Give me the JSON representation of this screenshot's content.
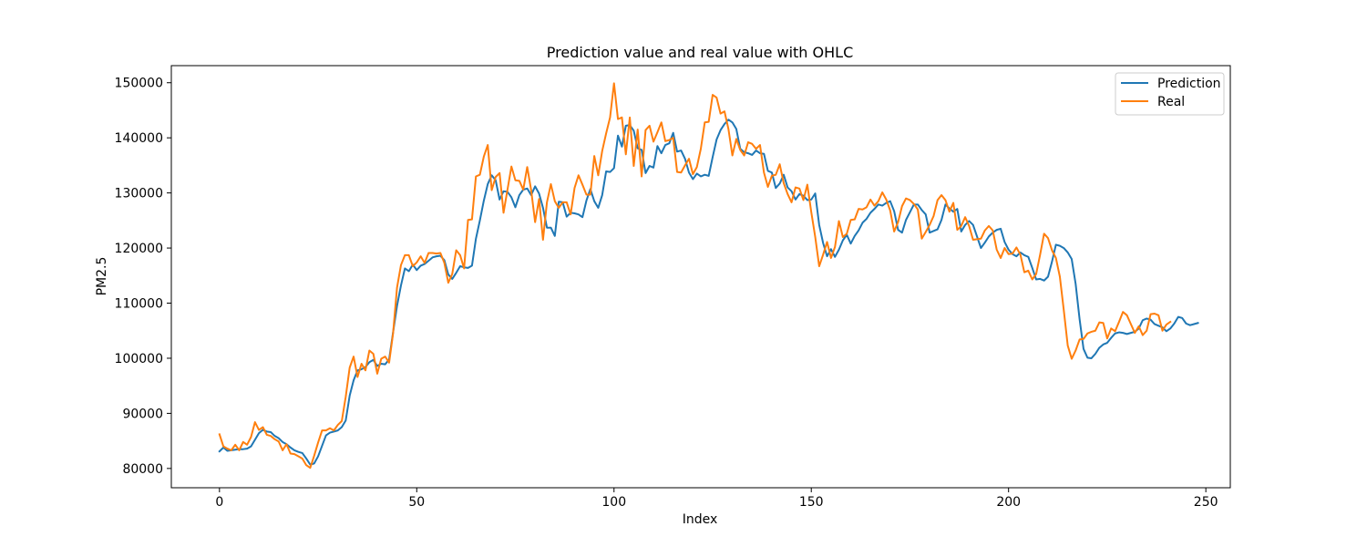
{
  "chart_data": {
    "type": "line",
    "title": "Prediction value and real value with OHLC",
    "xlabel": "Index",
    "ylabel": "PM2.5",
    "xlim": [
      -12.2,
      256.2
    ],
    "ylim": [
      76500,
      153100
    ],
    "xticks": [
      0,
      50,
      100,
      150,
      200,
      250
    ],
    "yticks": [
      80000,
      90000,
      100000,
      110000,
      120000,
      130000,
      140000,
      150000
    ],
    "xtick_labels": [
      "0",
      "50",
      "100",
      "150",
      "200",
      "250"
    ],
    "ytick_labels": [
      "80000",
      "90000",
      "100000",
      "110000",
      "120000",
      "130000",
      "140000",
      "150000"
    ],
    "grid": false,
    "legend_position": "top-right",
    "x_start": 0,
    "x_step": 1,
    "series": [
      {
        "name": "Prediction",
        "color": "#1f77b4",
        "values": [
          83100,
          83800,
          83200,
          83300,
          83400,
          83500,
          83500,
          83600,
          84000,
          85200,
          86400,
          87000,
          86700,
          86600,
          85900,
          85500,
          84800,
          84400,
          83800,
          83300,
          83000,
          82800,
          81800,
          80700,
          80900,
          82200,
          84100,
          86000,
          86500,
          86700,
          86900,
          87500,
          88700,
          93200,
          96000,
          97800,
          98000,
          98400,
          99300,
          99700,
          98600,
          99000,
          98900,
          99800,
          104700,
          109500,
          113200,
          116300,
          115800,
          117000,
          116000,
          116800,
          117100,
          117700,
          118300,
          118500,
          118600,
          117800,
          115200,
          114400,
          115500,
          116700,
          116500,
          116400,
          116800,
          121700,
          125000,
          128600,
          131600,
          133200,
          132300,
          128800,
          130300,
          130200,
          129200,
          127400,
          129600,
          130600,
          130800,
          129600,
          131200,
          129900,
          127300,
          123700,
          123700,
          122200,
          128400,
          128300,
          125700,
          126400,
          126300,
          126100,
          125600,
          128600,
          130700,
          128500,
          127300,
          129600,
          133900,
          133800,
          134500,
          140400,
          138400,
          142200,
          142300,
          141300,
          138100,
          137800,
          133600,
          134900,
          134600,
          138500,
          137200,
          138700,
          139000,
          140900,
          137500,
          137700,
          136200,
          133700,
          132500,
          133500,
          133000,
          133300,
          133100,
          136500,
          139700,
          141400,
          142500,
          143300,
          142800,
          141600,
          138000,
          137400,
          137200,
          136900,
          137700,
          137200,
          137100,
          134000,
          133700,
          130900,
          131700,
          133300,
          131000,
          130300,
          128800,
          129800,
          129500,
          128700,
          128800,
          129900,
          124200,
          120900,
          118500,
          119800,
          118400,
          119700,
          121400,
          122400,
          120800,
          122200,
          123200,
          124600,
          125300,
          126400,
          127100,
          127900,
          127700,
          128200,
          128500,
          126700,
          123300,
          122800,
          125100,
          126500,
          127900,
          127900,
          126900,
          126100,
          122800,
          123100,
          123400,
          125100,
          127900,
          127200,
          126600,
          127100,
          123000,
          124200,
          124900,
          124200,
          122100,
          120000,
          121000,
          122100,
          122800,
          123300,
          123500,
          121100,
          119700,
          118900,
          118500,
          119200,
          118700,
          118400,
          116400,
          114300,
          114400,
          114100,
          114800,
          117500,
          120600,
          120400,
          120000,
          119200,
          118000,
          113500,
          107100,
          101700,
          100100,
          100000,
          100800,
          101900,
          102500,
          102800,
          103700,
          104500,
          104700,
          104600,
          104400,
          104600,
          104800,
          105400,
          106900,
          107200,
          107000,
          106200,
          105900,
          105600,
          104900,
          105400,
          106300,
          107500,
          107300,
          106300,
          106000,
          106200,
          106400
        ]
      },
      {
        "name": "Real",
        "color": "#ff7f0e",
        "values": [
          86200,
          84000,
          83600,
          83300,
          84300,
          83300,
          84800,
          84300,
          85700,
          88400,
          87000,
          87500,
          86100,
          85900,
          85300,
          84900,
          83300,
          84400,
          82700,
          82600,
          82200,
          81800,
          80600,
          80100,
          82300,
          84700,
          86900,
          86900,
          87300,
          86900,
          87900,
          88600,
          93000,
          98300,
          100300,
          96600,
          99000,
          97800,
          101400,
          100800,
          97200,
          99900,
          100300,
          99200,
          104500,
          112800,
          116900,
          118700,
          118700,
          116700,
          117400,
          118500,
          117300,
          119100,
          119100,
          119000,
          119100,
          117300,
          113700,
          115300,
          119600,
          118700,
          116300,
          125100,
          125200,
          133000,
          133300,
          136600,
          138700,
          130500,
          132900,
          133600,
          126400,
          130600,
          134800,
          132300,
          132200,
          130600,
          134700,
          130500,
          124700,
          128900,
          121500,
          128300,
          131600,
          128500,
          127300,
          128300,
          128300,
          126100,
          130900,
          133200,
          131500,
          129700,
          129700,
          136700,
          133200,
          137600,
          140800,
          143700,
          149900,
          143400,
          143700,
          137000,
          143700,
          134900,
          141500,
          133000,
          141400,
          142200,
          139300,
          141000,
          142800,
          139400,
          139600,
          140000,
          133800,
          133700,
          135000,
          136200,
          133400,
          134700,
          138000,
          142800,
          142900,
          147800,
          147300,
          144400,
          144800,
          141600,
          136800,
          139800,
          137800,
          136800,
          139200,
          138900,
          138000,
          138700,
          133700,
          131100,
          133100,
          133300,
          135200,
          131800,
          129800,
          128300,
          131000,
          130800,
          128700,
          131500,
          126500,
          122000,
          116700,
          118800,
          121100,
          118200,
          120200,
          124900,
          122000,
          122600,
          125100,
          125200,
          127100,
          127000,
          127400,
          128800,
          127700,
          128500,
          130100,
          128800,
          126800,
          123000,
          124700,
          127600,
          129000,
          128700,
          128000,
          127000,
          121700,
          122900,
          124200,
          125800,
          128700,
          129600,
          128700,
          126600,
          128200,
          123300,
          124000,
          125600,
          124000,
          121500,
          121600,
          121700,
          123200,
          124000,
          123200,
          119700,
          118200,
          120000,
          118900,
          119000,
          120100,
          118800,
          115600,
          115900,
          114300,
          115300,
          118800,
          122600,
          121800,
          119600,
          118200,
          114800,
          108700,
          102300,
          99900,
          101400,
          103400,
          103500,
          104500,
          104800,
          105000,
          106500,
          106400,
          103600,
          105400,
          104900,
          106600,
          108400,
          107800,
          106200,
          104600,
          105800,
          104200,
          105000,
          108000,
          108100,
          107800,
          105000,
          106100,
          106600
        ]
      }
    ]
  }
}
